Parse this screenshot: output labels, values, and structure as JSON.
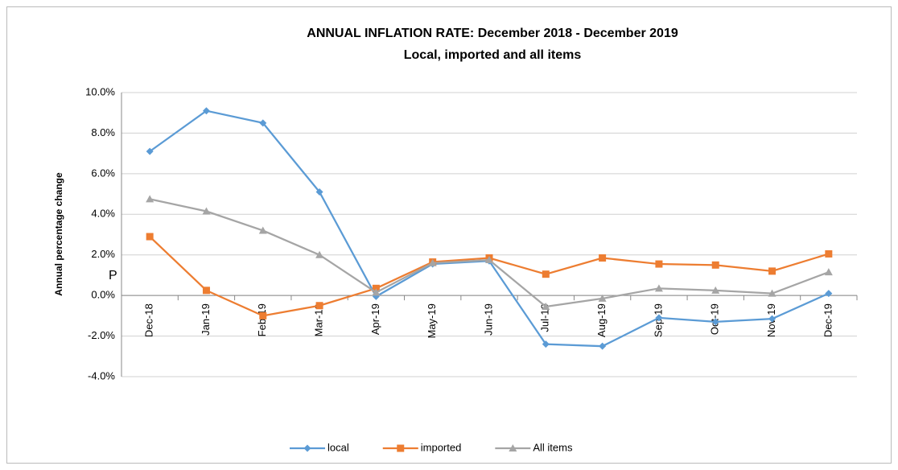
{
  "chart_data": {
    "type": "line",
    "title": "ANNUAL INFLATION RATE: December 2018 - December 2019",
    "subtitle": "Local, imported and all items",
    "y_label": "Annual percentage change",
    "annotation": "P",
    "categories": [
      "Dec-18",
      "Jan-19",
      "Feb-19",
      "Mar-19",
      "Apr-19",
      "May-19",
      "Jun-19",
      "Jul-19",
      "Aug-19",
      "Sep-19",
      "Oct-19",
      "Nov-19",
      "Dec-19"
    ],
    "series": [
      {
        "name": "local",
        "color": "#5b9bd5",
        "marker": "diamond",
        "values": [
          7.1,
          9.1,
          8.5,
          5.1,
          -0.05,
          1.55,
          1.7,
          -2.4,
          -2.5,
          -1.1,
          -1.3,
          -1.15,
          0.1
        ]
      },
      {
        "name": "imported",
        "color": "#ed7d31",
        "marker": "square",
        "values": [
          2.9,
          0.25,
          -1.0,
          -0.5,
          0.35,
          1.65,
          1.85,
          1.05,
          1.85,
          1.55,
          1.5,
          1.2,
          2.05
        ]
      },
      {
        "name": "All items",
        "color": "#a5a5a5",
        "marker": "triangle",
        "values": [
          4.75,
          4.15,
          3.2,
          2.0,
          0.15,
          1.6,
          1.75,
          -0.55,
          -0.15,
          0.35,
          0.25,
          0.1,
          1.15
        ]
      }
    ],
    "ylim": [
      -4,
      10
    ],
    "yticks": [
      {
        "value": -4,
        "label": "-4.0%"
      },
      {
        "value": -2,
        "label": "-2.0%"
      },
      {
        "value": 0,
        "label": "0.0%"
      },
      {
        "value": 2,
        "label": "2.0%"
      },
      {
        "value": 4,
        "label": "4.0%"
      },
      {
        "value": 6,
        "label": "6.0%"
      },
      {
        "value": 8,
        "label": "8.0%"
      },
      {
        "value": 10,
        "label": "10.0%"
      }
    ],
    "grid": true,
    "legend": "bottom"
  }
}
